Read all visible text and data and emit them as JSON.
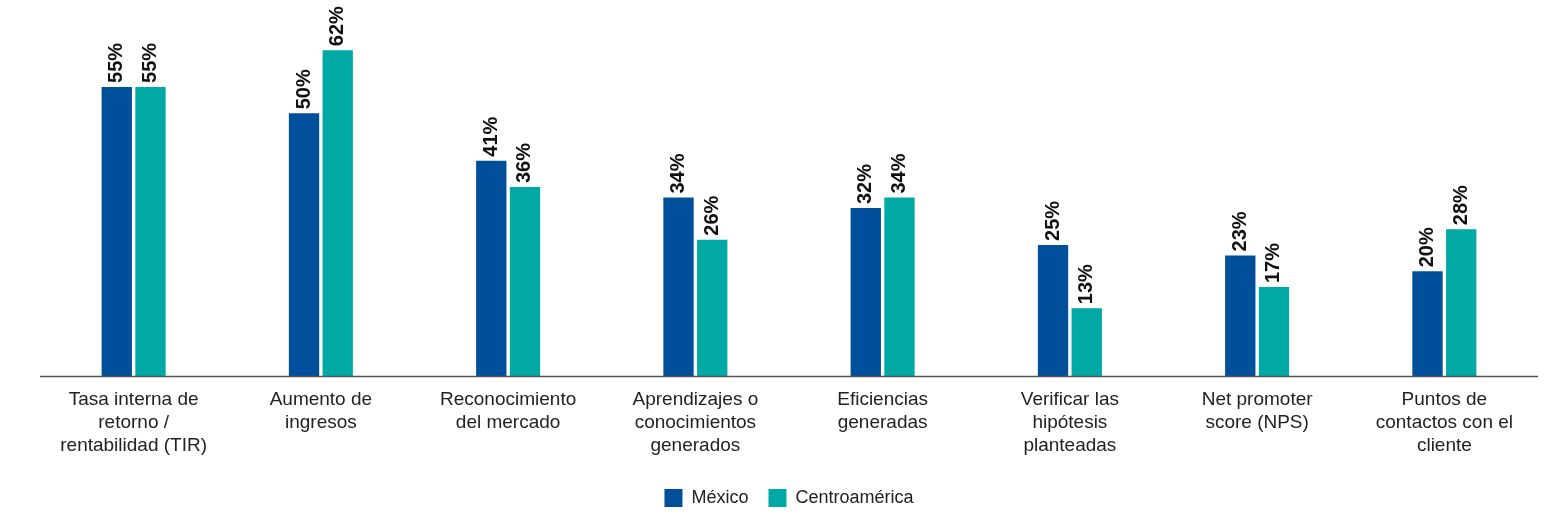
{
  "chart_data": {
    "type": "bar",
    "categories": [
      "Tasa interna de retorno / rentabilidad (TIR)",
      "Aumento de ingresos",
      "Reconocimiento del mercado",
      "Aprendizajes o conocimientos generados",
      "Eficiencias generadas",
      "Verificar las hipótesis planteadas",
      "Net promoter score (NPS)",
      "Puntos de contactos con el cliente"
    ],
    "series": [
      {
        "name": "México",
        "color": "#004f9a",
        "values": [
          55,
          50,
          41,
          34,
          32,
          25,
          23,
          20
        ],
        "value_labels": [
          "55%",
          "50%",
          "41%",
          "34%",
          "32%",
          "25%",
          "23%",
          "20%"
        ]
      },
      {
        "name": "Centroamérica",
        "color": "#00a9a4",
        "values": [
          55,
          62,
          36,
          26,
          34,
          13,
          17,
          28
        ],
        "value_labels": [
          "55%",
          "62%",
          "36%",
          "26%",
          "34%",
          "13%",
          "17%",
          "28%"
        ]
      }
    ],
    "legend": "bottom",
    "grid": false,
    "tick_labels": "x"
  }
}
